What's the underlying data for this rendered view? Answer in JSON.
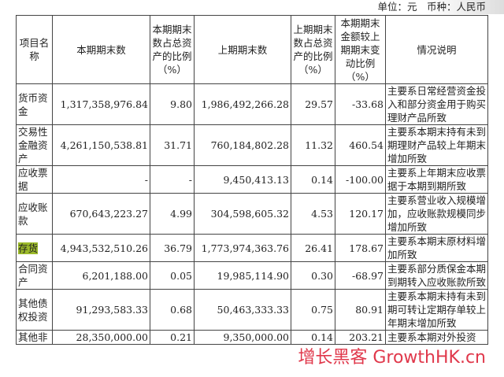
{
  "unit_line": "单位：元　币种：人民币",
  "headers": [
    "项目名称",
    "本期期末数",
    "本期期末数占总资产的比例（%）",
    "上期期末数",
    "上期期末数占总资产的比例（%）",
    "本期期末金额较上期期末变动比例（%）",
    "情况说明"
  ],
  "rows": [
    {
      "name": "货币资金",
      "cur": "1,317,358,976.84",
      "cur_pct": "9.80",
      "prev": "1,986,492,266.28",
      "prev_pct": "29.57",
      "change": "-33.68",
      "desc": "主要系日常经营资金投入和部分资金用于购买理财产品所致"
    },
    {
      "name": "交易性金融资产",
      "cur": "4,261,150,538.81",
      "cur_pct": "31.71",
      "prev": "760,184,802.28",
      "prev_pct": "11.32",
      "change": "460.54",
      "desc": "主要系本期末持有未到期理财产品较上年期末增加所致"
    },
    {
      "name": "应收票据",
      "cur": "-",
      "cur_pct": "-",
      "prev": "9,450,413.13",
      "prev_pct": "0.14",
      "change": "-100.00",
      "desc": "主要系上年期末应收票据于本期到期所致"
    },
    {
      "name": "应收账款",
      "cur": "670,643,223.27",
      "cur_pct": "4.99",
      "prev": "304,598,605.32",
      "prev_pct": "4.53",
      "change": "120.17",
      "desc": "主要系营业收入规模增加，应收账款规模同步增加所致"
    },
    {
      "name": "存货",
      "cur": "4,943,532,510.26",
      "cur_pct": "36.79",
      "prev": "1,773,974,363.76",
      "prev_pct": "26.41",
      "change": "178.67",
      "desc": "主要系本期末原材料增加所致"
    },
    {
      "name": "合同资产",
      "cur": "6,201,188.00",
      "cur_pct": "0.05",
      "prev": "19,985,114.90",
      "prev_pct": "0.30",
      "change": "-68.97",
      "desc": "主要系部分质保金本期到期转入应收账款所致"
    },
    {
      "name": "其他债权投资",
      "cur": "91,293,583.33",
      "cur_pct": "0.68",
      "prev": "50,463,333.33",
      "prev_pct": "0.75",
      "change": "80.91",
      "desc": "主要系本期末持有未到期可转让定期存单较上年期末增加所致"
    },
    {
      "name": "其他非",
      "cur": "28,350,000.00",
      "cur_pct": "0.21",
      "prev": "9,350,000.00",
      "prev_pct": "0.14",
      "change": "203.21",
      "desc": "主要系本期对外投资"
    }
  ],
  "watermark": "增长黑客 GrowthHK.cn",
  "highlight_color": "#9cba2a"
}
